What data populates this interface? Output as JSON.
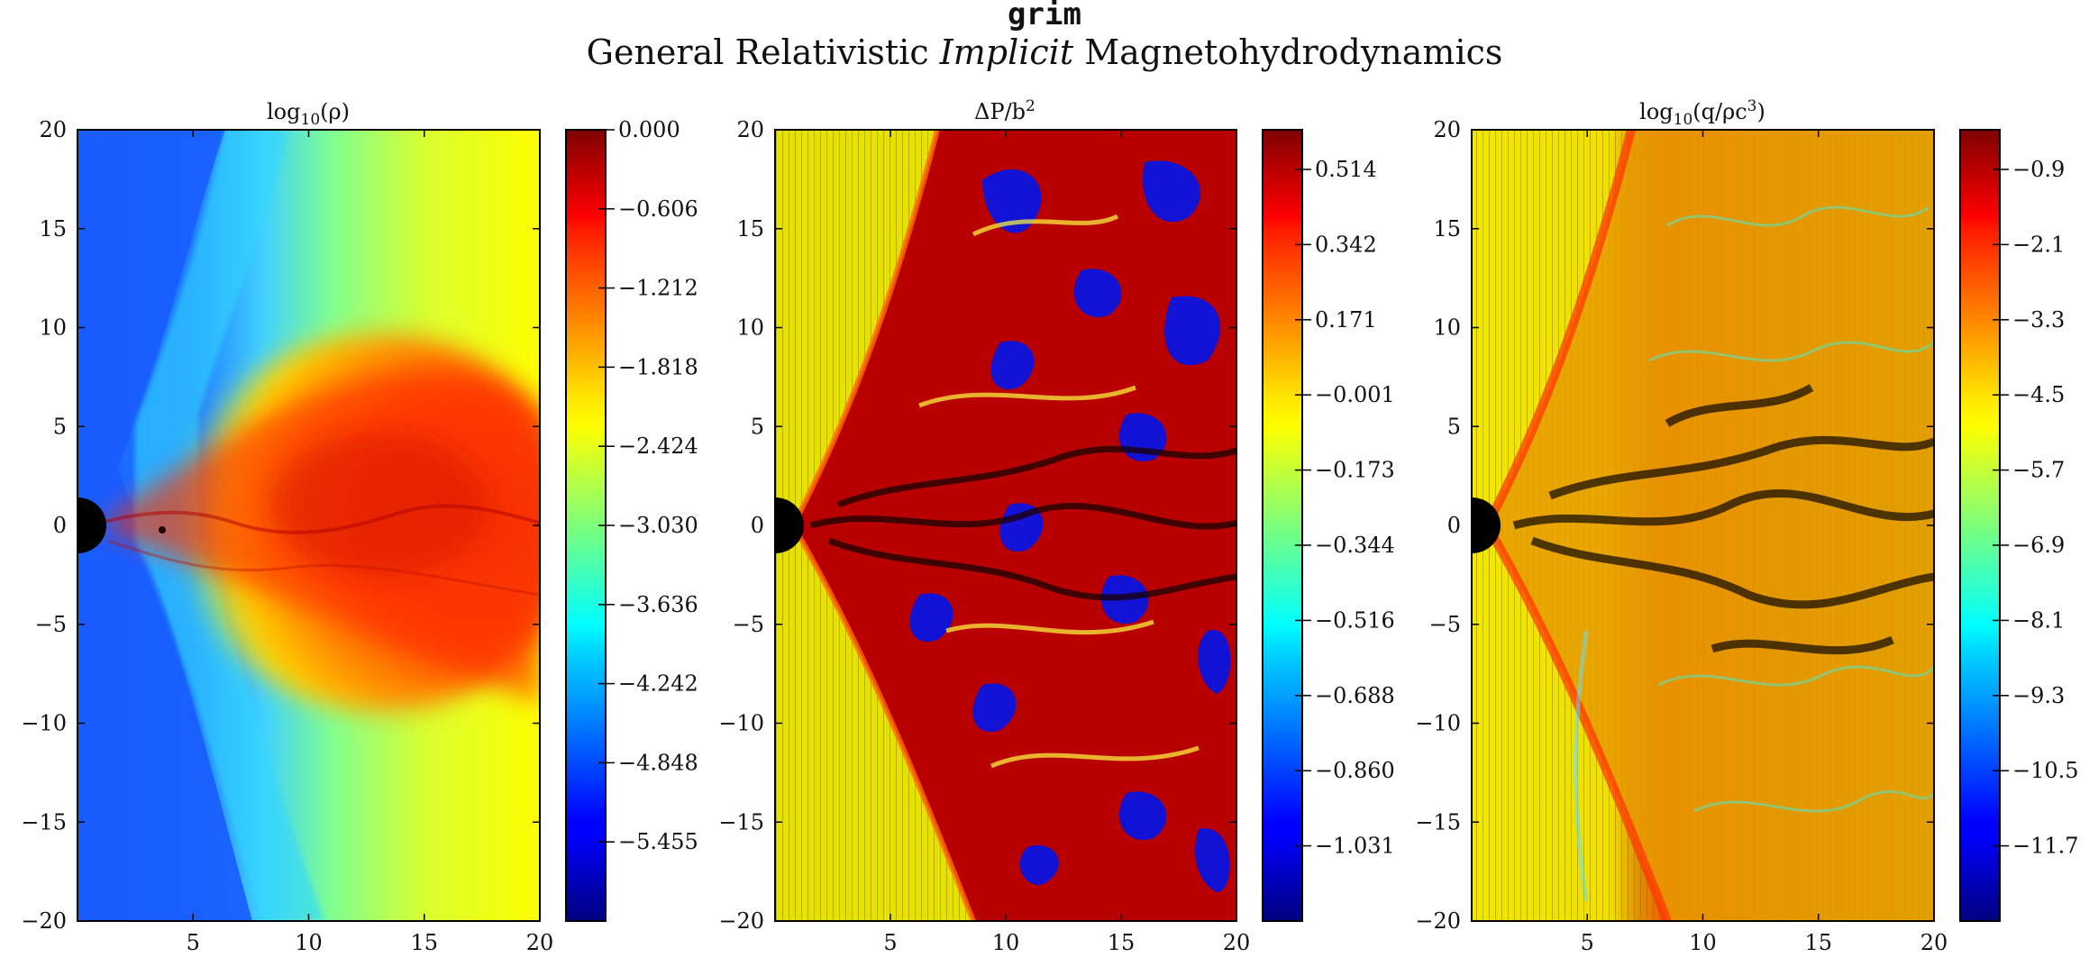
{
  "figure": {
    "title": "grim",
    "subtitle_pre": "General Relativistic ",
    "subtitle_italic": "Implicit",
    "subtitle_post": " Magnetohydrodynamics"
  },
  "chart_data": [
    {
      "type": "heatmap",
      "title": "log10(ρ)",
      "title_base": "log",
      "title_sub": "10",
      "title_rest": "(ρ)",
      "xlim": [
        0,
        20
      ],
      "ylim": [
        -20,
        20
      ],
      "xticks": [
        "5",
        "10",
        "15",
        "20"
      ],
      "yticks": [
        "20",
        "15",
        "10",
        "5",
        "0",
        "−5",
        "−10",
        "−15",
        "−20"
      ],
      "colorbar_ticks": [
        "0.000",
        "−0.606",
        "−1.212",
        "−1.818",
        "−2.424",
        "−3.030",
        "−3.636",
        "−4.242",
        "−4.848",
        "−5.455"
      ],
      "colormap": "jet",
      "contours": false
    },
    {
      "type": "heatmap",
      "title": "ΔP/b²",
      "title_base": "ΔP/b",
      "title_sub": "",
      "title_sup": "2",
      "title_rest": "",
      "xlim": [
        0,
        20
      ],
      "ylim": [
        -20,
        20
      ],
      "xticks": [
        "5",
        "10",
        "15",
        "20"
      ],
      "yticks": [
        "20",
        "15",
        "10",
        "5",
        "0",
        "−5",
        "−10",
        "−15",
        "−20"
      ],
      "colorbar_ticks": [
        "0.514",
        "0.342",
        "0.171",
        "−0.001",
        "−0.173",
        "−0.344",
        "−0.516",
        "−0.688",
        "−0.860",
        "−1.031"
      ],
      "colormap": "jet",
      "contours": true
    },
    {
      "type": "heatmap",
      "title": "log10(q/ρc³)",
      "title_base": "log",
      "title_sub": "10",
      "title_rest": "(q/ρc",
      "title_sup": "3",
      "title_end": ")",
      "xlim": [
        0,
        20
      ],
      "ylim": [
        -20,
        20
      ],
      "xticks": [
        "5",
        "10",
        "15",
        "20"
      ],
      "yticks": [
        "20",
        "15",
        "10",
        "5",
        "0",
        "−5",
        "−10",
        "−15",
        "−20"
      ],
      "colorbar_ticks": [
        "−0.9",
        "−2.1",
        "−3.3",
        "−4.5",
        "−5.7",
        "−6.9",
        "−8.1",
        "−9.3",
        "−10.5",
        "−11.7"
      ],
      "colormap": "jet",
      "contours": true
    }
  ]
}
